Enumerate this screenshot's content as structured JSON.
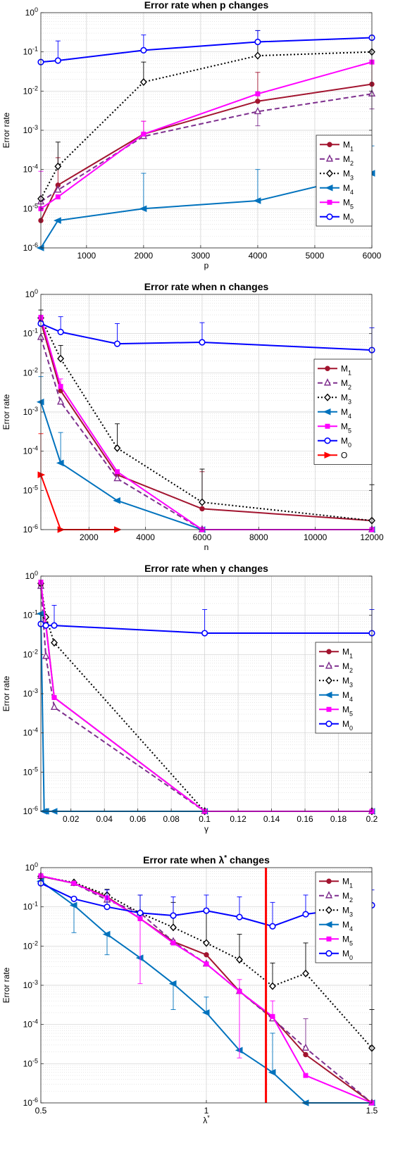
{
  "chart_data": [
    {
      "type": "line",
      "title": "Error rate when p changes",
      "xlabel": "p",
      "ylabel": "Error rate",
      "yscale": "log",
      "xlim": [
        200,
        6000
      ],
      "ylim": [
        1e-06,
        1
      ],
      "xticks": [
        1000,
        2000,
        3000,
        4000,
        5000,
        6000
      ],
      "yticks": [
        "10^-6",
        "10^-5",
        "10^-4",
        "10^-3",
        "10^-2",
        "10^-1",
        "10^0"
      ],
      "grid": true,
      "legend_placement": "right-middle",
      "x": [
        200,
        500,
        2000,
        4000,
        6000
      ],
      "series": [
        {
          "name": "M_1",
          "color": "#A2142F",
          "style": "solid",
          "marker": "circle",
          "values": [
            5e-06,
            4e-05,
            0.0008,
            0.0055,
            0.015
          ],
          "err_upper": [
            null,
            0.0002,
            0.0017,
            0.03,
            0.05
          ]
        },
        {
          "name": "M_2",
          "color": "#7E2F8E",
          "style": "dashed",
          "marker": "triangle",
          "values": [
            1.5e-05,
            3e-05,
            0.0007,
            0.003,
            0.0085
          ],
          "err_lower": [
            null,
            null,
            null,
            0.0013,
            0.0035
          ]
        },
        {
          "name": "M_3",
          "color": "#000000",
          "style": "dotted",
          "marker": "diamond",
          "values": [
            1.8e-05,
            0.00012,
            0.017,
            0.08,
            0.1
          ],
          "err_upper": [
            null,
            0.0005,
            0.055,
            0.35,
            null
          ]
        },
        {
          "name": "M_4",
          "color": "#0072BD",
          "style": "solid",
          "marker": "triangle-left",
          "values": [
            1e-06,
            5e-06,
            1e-05,
            1.6e-05,
            8e-05
          ],
          "err_upper": [
            null,
            null,
            8e-05,
            0.0001,
            0.0004
          ]
        },
        {
          "name": "M_5",
          "color": "#FF00FF",
          "style": "solid",
          "marker": "square",
          "values": [
            1e-05,
            2e-05,
            0.0008,
            0.0085,
            0.055
          ],
          "err_upper": [
            9e-05,
            null,
            0.0017,
            null,
            null
          ]
        },
        {
          "name": "M_0",
          "color": "#0000FF",
          "style": "solid",
          "marker": "circle-open",
          "values": [
            0.055,
            0.06,
            0.11,
            0.18,
            0.23
          ],
          "err_upper": [
            null,
            0.19,
            0.27,
            0.35,
            null
          ]
        }
      ]
    },
    {
      "type": "line",
      "title": "Error rate when n changes",
      "xlabel": "n",
      "ylabel": "Error rate",
      "yscale": "log",
      "xlim": [
        300,
        12000
      ],
      "ylim": [
        1e-06,
        1
      ],
      "xticks": [
        2000,
        4000,
        6000,
        8000,
        10000,
        12000
      ],
      "yticks": [
        "10^-6",
        "10^-5",
        "10^-4",
        "10^-3",
        "10^-2",
        "10^-1",
        "10^0"
      ],
      "grid": true,
      "legend_placement": "right-middle",
      "series": [
        {
          "name": "M_1",
          "color": "#A2142F",
          "style": "solid",
          "marker": "circle",
          "x": [
            300,
            1000,
            3000,
            6000,
            12000
          ],
          "values": [
            0.2,
            0.0035,
            2.5e-05,
            3.4e-06,
            1.7e-06
          ],
          "err_upper": [
            null,
            null,
            null,
            3e-05,
            null
          ]
        },
        {
          "name": "M_2",
          "color": "#7E2F8E",
          "style": "dashed",
          "marker": "triangle",
          "x": [
            300,
            1000,
            3000,
            6000,
            12000
          ],
          "values": [
            0.08,
            0.0018,
            2e-05,
            1e-06,
            1e-06
          ]
        },
        {
          "name": "M_3",
          "color": "#000000",
          "style": "dotted",
          "marker": "diamond",
          "x": [
            300,
            1000,
            3000,
            6000,
            12000
          ],
          "values": [
            0.25,
            0.023,
            0.00012,
            5e-06,
            1.7e-06
          ],
          "err_upper": [
            0.4,
            0.05,
            0.0005,
            3.5e-05,
            1.4e-05
          ]
        },
        {
          "name": "M_4",
          "color": "#0072BD",
          "style": "solid",
          "marker": "triangle-left",
          "x": [
            300,
            1000,
            3000,
            6000,
            12000
          ],
          "values": [
            0.0018,
            5e-05,
            5.5e-06,
            1e-06,
            1e-06
          ],
          "err_upper": [
            0.008,
            0.0003,
            null,
            null,
            null
          ]
        },
        {
          "name": "M_5",
          "color": "#FF00FF",
          "style": "solid",
          "marker": "square",
          "x": [
            300,
            1000,
            3000,
            6000,
            12000
          ],
          "values": [
            0.26,
            0.0045,
            3e-05,
            1e-06,
            1e-06
          ],
          "err_upper": [
            null,
            0.007,
            null,
            null,
            null
          ]
        },
        {
          "name": "M_0",
          "color": "#0000FF",
          "style": "solid",
          "marker": "circle-open",
          "x": [
            300,
            1000,
            3000,
            6000,
            12000
          ],
          "values": [
            0.18,
            0.11,
            0.055,
            0.06,
            0.038
          ],
          "err_upper": [
            null,
            0.27,
            0.18,
            0.19,
            0.14
          ]
        },
        {
          "name": "O",
          "color": "#FF0000",
          "style": "solid",
          "marker": "triangle-right",
          "x": [
            300,
            1000,
            3000
          ],
          "values": [
            2.5e-05,
            1e-06,
            1e-06
          ],
          "err_upper": [
            0.00028,
            null,
            null
          ]
        }
      ]
    },
    {
      "type": "line",
      "title": "Error rate when γ changes",
      "xlabel": "γ",
      "ylabel": "Error rate",
      "yscale": "log",
      "xlim": [
        0.002,
        0.2
      ],
      "ylim": [
        1e-06,
        1
      ],
      "xticks": [
        0.02,
        0.04,
        0.06,
        0.08,
        0.1,
        0.12,
        0.14,
        0.16,
        0.18,
        0.2
      ],
      "yticks": [
        "10^-6",
        "10^-5",
        "10^-4",
        "10^-3",
        "10^-2",
        "10^-1",
        "10^0"
      ],
      "grid": true,
      "legend_placement": "right-middle",
      "series": [
        {
          "name": "M_1",
          "color": "#A2142F",
          "style": "solid",
          "marker": "circle",
          "x": [
            0.002,
            0.005,
            0.01,
            0.1,
            0.2
          ],
          "values": [
            0.6,
            0.06,
            0.0008,
            1e-06,
            1e-06
          ]
        },
        {
          "name": "M_2",
          "color": "#7E2F8E",
          "style": "dashed",
          "marker": "triangle",
          "x": [
            0.002,
            0.005,
            0.01,
            0.1,
            0.2
          ],
          "values": [
            0.55,
            0.009,
            0.00045,
            1e-06,
            1e-06
          ]
        },
        {
          "name": "M_3",
          "color": "#000000",
          "style": "dotted",
          "marker": "diamond",
          "x": [
            0.002,
            0.005,
            0.01,
            0.1,
            0.2
          ],
          "values": [
            0.65,
            0.09,
            0.02,
            1e-06,
            1e-06
          ]
        },
        {
          "name": "M_4",
          "color": "#0072BD",
          "style": "solid",
          "marker": "triangle-left",
          "x": [
            0.002,
            0.004,
            0.005,
            0.01,
            0.1,
            0.2
          ],
          "values": [
            0.11,
            1e-06,
            1e-06,
            1e-06,
            1e-06,
            1e-06
          ]
        },
        {
          "name": "M_5",
          "color": "#FF00FF",
          "style": "solid",
          "marker": "square",
          "x": [
            0.002,
            0.005,
            0.01,
            0.1,
            0.2
          ],
          "values": [
            0.7,
            0.055,
            0.0008,
            1e-06,
            1e-06
          ]
        },
        {
          "name": "M_0",
          "color": "#0000FF",
          "style": "solid",
          "marker": "circle-open",
          "x": [
            0.002,
            0.005,
            0.01,
            0.1,
            0.2
          ],
          "values": [
            0.06,
            0.055,
            0.055,
            0.035,
            0.035
          ],
          "err_upper": [
            null,
            null,
            0.18,
            0.14,
            0.14
          ]
        }
      ]
    },
    {
      "type": "line",
      "title": "Error rate when λ* changes",
      "xlabel": "λ*",
      "ylabel": "Error rate",
      "yscale": "log",
      "xlim": [
        0.5,
        1.5
      ],
      "ylim": [
        1e-06,
        1
      ],
      "xticks": [
        0.5,
        1,
        1.5
      ],
      "yticks": [
        "10^-6",
        "10^-5",
        "10^-4",
        "10^-3",
        "10^-2",
        "10^-1",
        "10^0"
      ],
      "grid": true,
      "legend_placement": "top-right",
      "vertical_line": {
        "x": 1.18,
        "color": "#FF0000"
      },
      "x": [
        0.5,
        0.6,
        0.7,
        0.8,
        0.9,
        1.0,
        1.1,
        1.2,
        1.3,
        1.5
      ],
      "series": [
        {
          "name": "M_1",
          "color": "#A2142F",
          "style": "solid",
          "marker": "circle",
          "values": [
            0.6,
            0.4,
            0.18,
            0.05,
            0.013,
            0.006,
            0.0007,
            0.00015,
            1.7e-05,
            1e-06
          ]
        },
        {
          "name": "M_2",
          "color": "#7E2F8E",
          "style": "dashed",
          "marker": "triangle",
          "values": [
            0.6,
            0.4,
            0.15,
            0.07,
            0.013,
            0.0035,
            0.0007,
            0.00014,
            2.5e-05,
            1e-06
          ],
          "err_upper": [
            null,
            null,
            null,
            null,
            null,
            null,
            null,
            null,
            0.00014,
            null
          ]
        },
        {
          "name": "M_3",
          "color": "#000000",
          "style": "dotted",
          "marker": "diamond",
          "values": [
            0.6,
            0.42,
            0.2,
            0.07,
            0.03,
            0.012,
            0.0045,
            0.00095,
            0.002,
            2.5e-05
          ],
          "err_upper": [
            null,
            null,
            0.28,
            0.2,
            0.13,
            0.08,
            0.02,
            0.0037,
            0.012,
            0.00024
          ]
        },
        {
          "name": "M_4",
          "color": "#0072BD",
          "style": "solid",
          "marker": "triangle-left",
          "values": [
            0.45,
            0.11,
            0.02,
            0.005,
            0.0011,
            0.0002,
            2.2e-05,
            6e-06,
            1e-06,
            1e-06
          ],
          "err_upper": [
            null,
            null,
            null,
            null,
            null,
            0.0005,
            null,
            6e-05,
            null,
            null
          ],
          "err_lower": [
            null,
            0.022,
            0.006,
            null,
            0.00024,
            null,
            null,
            null,
            null,
            null
          ]
        },
        {
          "name": "M_5",
          "color": "#FF00FF",
          "style": "solid",
          "marker": "square",
          "values": [
            0.62,
            0.4,
            0.17,
            0.05,
            0.012,
            0.0035,
            0.0007,
            0.00016,
            5e-06,
            1e-06
          ],
          "err_upper": [
            null,
            null,
            null,
            null,
            null,
            null,
            0.0014,
            0.0004,
            null,
            null
          ],
          "err_lower": [
            null,
            null,
            null,
            0.0011,
            null,
            null,
            1.4e-05,
            null,
            null,
            null
          ]
        },
        {
          "name": "M_0",
          "color": "#0000FF",
          "style": "solid",
          "marker": "circle-open",
          "values": [
            0.4,
            0.16,
            0.1,
            0.07,
            0.06,
            0.08,
            0.055,
            0.032,
            0.065,
            0.11
          ],
          "err_upper": [
            null,
            null,
            0.27,
            0.2,
            0.18,
            0.2,
            0.18,
            0.13,
            0.2,
            0.27
          ]
        }
      ]
    }
  ]
}
